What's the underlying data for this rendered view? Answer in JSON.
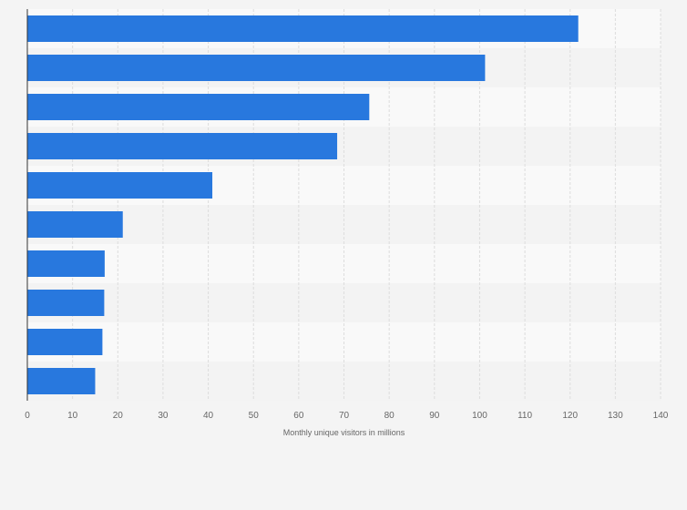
{
  "chart_data": {
    "type": "bar",
    "orientation": "horizontal",
    "title": "",
    "xlabel": "Monthly unique visitors in millions",
    "ylabel": "",
    "xlim": [
      0,
      140
    ],
    "xticks": [
      "0",
      "10",
      "20",
      "30",
      "40",
      "50",
      "60",
      "70",
      "80",
      "90",
      "100",
      "110",
      "120",
      "130",
      "140"
    ],
    "values": [
      121.8,
      101.2,
      75.6,
      68.5,
      40.9,
      21.1,
      17.1,
      17.0,
      16.6,
      15.0
    ],
    "grid": true,
    "colors": {
      "bar": "#2878de",
      "band_light": "#f9f9f9",
      "band_dark": "#f3f3f3",
      "grid": "#dddddd",
      "axis": "#333333",
      "background": "#f4f4f4"
    }
  }
}
